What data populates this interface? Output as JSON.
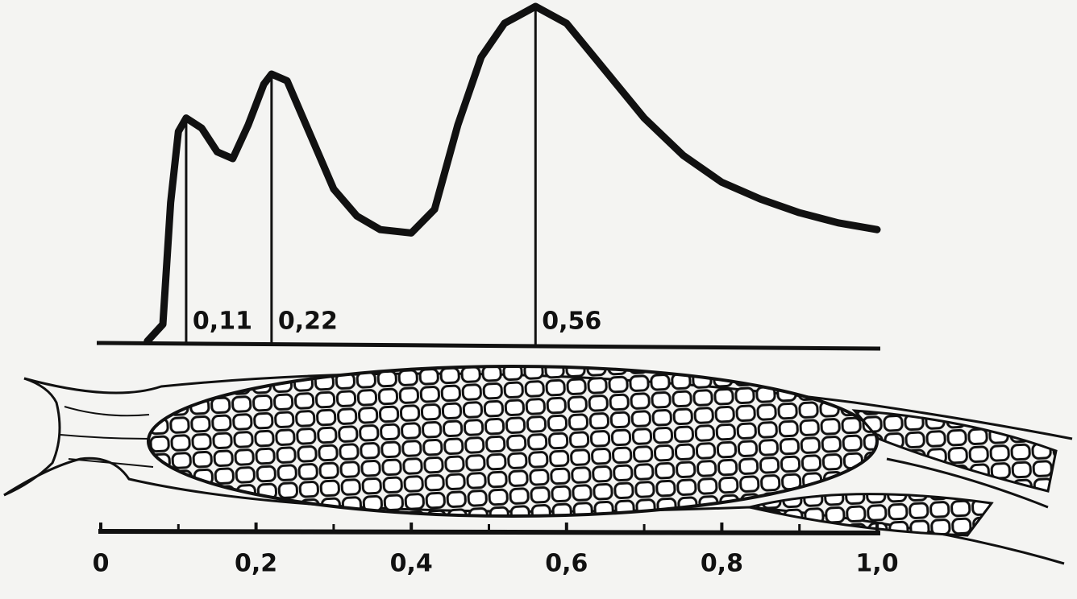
{
  "chart_data": {
    "type": "line",
    "x": [
      0.06,
      0.08,
      0.09,
      0.1,
      0.11,
      0.13,
      0.15,
      0.17,
      0.19,
      0.21,
      0.22,
      0.24,
      0.27,
      0.3,
      0.33,
      0.36,
      0.4,
      0.43,
      0.46,
      0.49,
      0.52,
      0.56,
      0.6,
      0.65,
      0.7,
      0.75,
      0.8,
      0.85,
      0.9,
      0.95,
      1.0
    ],
    "series": [
      {
        "color": "#111111",
        "values": [
          0.01,
          0.06,
          0.42,
          0.63,
          0.67,
          0.64,
          0.57,
          0.55,
          0.65,
          0.77,
          0.8,
          0.78,
          0.62,
          0.46,
          0.38,
          0.34,
          0.33,
          0.4,
          0.65,
          0.85,
          0.95,
          1.0,
          0.95,
          0.81,
          0.67,
          0.56,
          0.48,
          0.43,
          0.39,
          0.36,
          0.34
        ]
      }
    ],
    "annotations": [
      {
        "x": 0.11,
        "y": 0.67,
        "label": "0,11"
      },
      {
        "x": 0.22,
        "y": 0.8,
        "label": "0,22"
      },
      {
        "x": 0.56,
        "y": 1.0,
        "label": "0,56"
      }
    ],
    "xlim": [
      0,
      1.0
    ],
    "ylim": [
      0,
      1
    ],
    "xticks": [
      0,
      {
        "value": 0.2,
        "label": "0,2"
      },
      {
        "value": 0.4,
        "label": "0,4"
      },
      {
        "value": 0.6,
        "label": "0,6"
      },
      {
        "value": 0.8,
        "label": "0,8"
      },
      {
        "value": 1.0,
        "label": "1,0"
      }
    ],
    "minor_xticks": [
      0.1,
      0.3,
      0.5,
      0.7,
      0.9
    ]
  }
}
